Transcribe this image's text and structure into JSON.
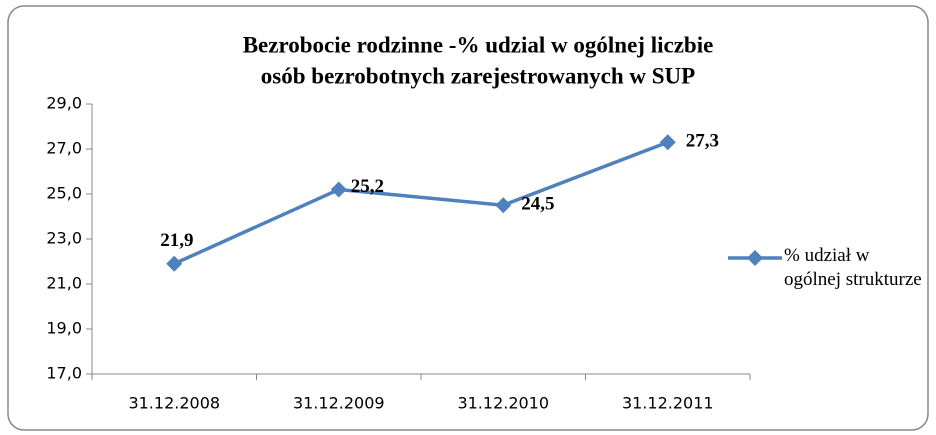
{
  "chart_data": {
    "type": "line",
    "title": [
      "Bezrobocie rodzinne -%  udzial w ogólnej liczbie",
      "osób bezrobotnych zarejestrowanych w SUP"
    ],
    "categories": [
      "31.12.2008",
      "31.12.2009",
      "31.12.2010",
      "31.12.2011"
    ],
    "series": [
      {
        "name": "% udział w ogólnej strukturze",
        "color": "#4f81bd",
        "values": [
          21.9,
          25.2,
          24.5,
          27.3
        ],
        "value_labels": [
          "21,9",
          "25,2",
          "24,5",
          "27,3"
        ]
      }
    ],
    "ylim": [
      17,
      29
    ],
    "yticks": [
      {
        "value": 17,
        "label": "17,0"
      },
      {
        "value": 19,
        "label": "19,0"
      },
      {
        "value": 21,
        "label": "21,0"
      },
      {
        "value": 23,
        "label": "23,0"
      },
      {
        "value": 25,
        "label": "25,0"
      },
      {
        "value": 27,
        "label": "27,0"
      },
      {
        "value": 29,
        "label": "29,0"
      }
    ],
    "legend": "right"
  }
}
